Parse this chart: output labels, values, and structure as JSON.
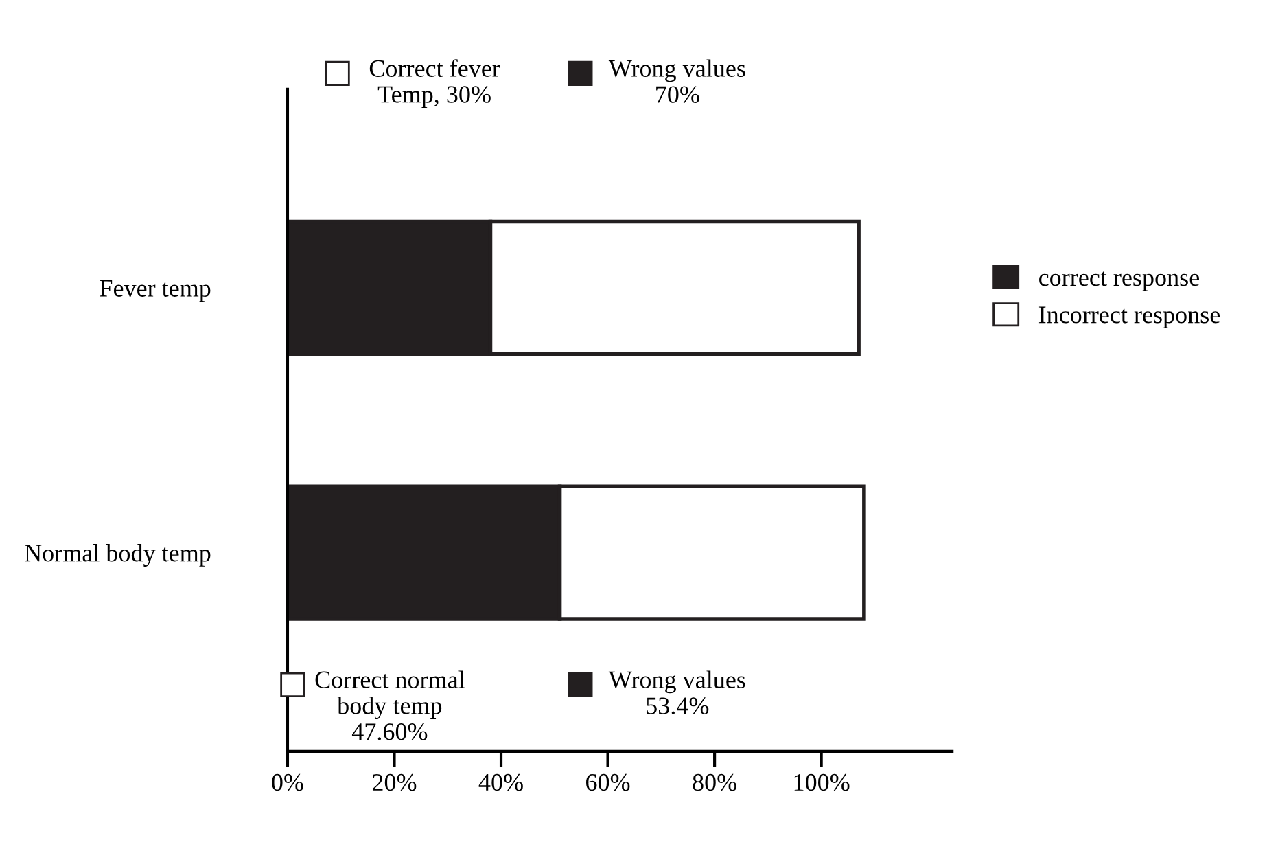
{
  "chart_data": {
    "type": "bar",
    "orientation": "horizontal",
    "stacked": true,
    "categories": [
      "Fever temp",
      "Normal body temp"
    ],
    "series": [
      {
        "name": "correct response",
        "color": "#231f20",
        "values": [
          38,
          51
        ]
      },
      {
        "name": "Incorrect response",
        "color": "#ffffff",
        "values": [
          69,
          57
        ]
      }
    ],
    "xlim": [
      0,
      124.5
    ],
    "xticks": [
      {
        "value": 0,
        "label": "0%"
      },
      {
        "value": 20,
        "label": "20%"
      },
      {
        "value": 40,
        "label": "40%"
      },
      {
        "value": 60,
        "label": "60%"
      },
      {
        "value": 80,
        "label": "80%"
      },
      {
        "value": 100,
        "label": "100%"
      }
    ],
    "legend": "right",
    "grid": false,
    "annotations": [
      "Correct fever\nTemp, 30%",
      "Wrong values\n70%",
      "Correct normal\nbody temp\n47.60%",
      "Wrong values\n53.4%"
    ]
  }
}
